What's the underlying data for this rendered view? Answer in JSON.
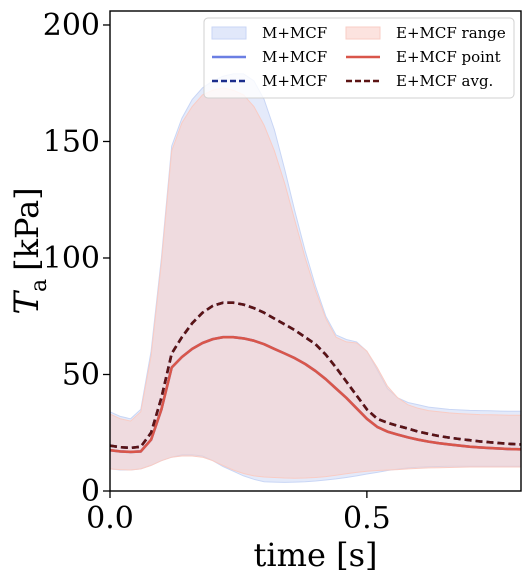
{
  "chart_data": {
    "type": "line",
    "xlabel": "time [s]",
    "ylabel_main": "T",
    "ylabel_sub": "a",
    "ylabel_unit": "[kPa]",
    "xlim": [
      0.0,
      0.8
    ],
    "ylim": [
      0,
      206
    ],
    "xticks": [
      0.0,
      0.5
    ],
    "xtick_labels": [
      "0.0",
      "0.5"
    ],
    "yticks": [
      0,
      50,
      100,
      150,
      200
    ],
    "ytick_labels": [
      "0",
      "50",
      "100",
      "150",
      "200"
    ],
    "grid": false,
    "legend_position": "top-right",
    "legend_columns": 2,
    "x": [
      0.0,
      0.02,
      0.04,
      0.06,
      0.08,
      0.1,
      0.12,
      0.14,
      0.16,
      0.18,
      0.2,
      0.22,
      0.24,
      0.26,
      0.28,
      0.3,
      0.32,
      0.34,
      0.36,
      0.38,
      0.4,
      0.42,
      0.44,
      0.46,
      0.48,
      0.5,
      0.52,
      0.54,
      0.56,
      0.58,
      0.6,
      0.62,
      0.64,
      0.66,
      0.68,
      0.7,
      0.72,
      0.74,
      0.76,
      0.78,
      0.8
    ],
    "series": [
      {
        "name": "M+MCF",
        "kind": "band",
        "color": "#c9d6f5",
        "lower": [
          9.5,
          9.0,
          9.0,
          9.5,
          11.0,
          13.0,
          14.5,
          15.5,
          15.5,
          15.0,
          13.0,
          10.5,
          8.5,
          6.5,
          5.0,
          4.0,
          3.8,
          3.7,
          3.8,
          4.0,
          4.3,
          4.7,
          5.2,
          5.8,
          6.5,
          7.3,
          8.0,
          8.8,
          9.4,
          9.9,
          10.2,
          10.4,
          10.5,
          10.6,
          10.6,
          10.6,
          10.6,
          10.6,
          10.6,
          10.6,
          10.6
        ],
        "upper": [
          34.0,
          32.0,
          31.0,
          35.0,
          60.0,
          100.0,
          148.0,
          160.0,
          168.0,
          173.0,
          176.0,
          178.0,
          179.0,
          179.0,
          176.0,
          168.0,
          155.0,
          138.0,
          120.0,
          103.0,
          88.0,
          75.0,
          67.0,
          65.0,
          64.0,
          60.0,
          52.0,
          44.0,
          40.0,
          38.0,
          37.0,
          36.0,
          35.5,
          35.0,
          34.8,
          34.6,
          34.5,
          34.4,
          34.3,
          34.2,
          34.2
        ]
      },
      {
        "name": "M+MCF",
        "kind": "line",
        "style": "solid",
        "color": "#6b7fe3",
        "values": [
          17.5,
          17.0,
          16.8,
          17.0,
          22.0,
          35.0,
          53.0,
          57.5,
          61.0,
          63.5,
          65.2,
          66.0,
          66.0,
          65.5,
          64.5,
          63.0,
          61.0,
          59.0,
          57.0,
          54.5,
          51.5,
          48.0,
          44.0,
          40.0,
          35.5,
          31.0,
          27.5,
          25.5,
          24.2,
          23.0,
          22.0,
          21.2,
          20.5,
          20.0,
          19.5,
          19.0,
          18.7,
          18.4,
          18.2,
          18.0,
          17.9
        ]
      },
      {
        "name": "M+MCF",
        "kind": "line",
        "style": "dashed",
        "color": "#1a2d8c",
        "values": [
          19.5,
          18.8,
          18.5,
          19.0,
          25.0,
          40.0,
          59.0,
          66.0,
          72.0,
          76.5,
          79.5,
          80.8,
          80.8,
          80.0,
          78.5,
          76.5,
          74.0,
          71.5,
          69.0,
          66.0,
          63.0,
          58.5,
          53.0,
          47.0,
          41.0,
          35.0,
          31.0,
          29.3,
          28.0,
          26.8,
          25.5,
          24.5,
          23.6,
          22.9,
          22.3,
          21.8,
          21.3,
          20.9,
          20.5,
          20.2,
          20.0
        ]
      },
      {
        "name": "E+MCF range",
        "kind": "band",
        "color": "#f9ccc4",
        "lower": [
          9.5,
          9.2,
          9.0,
          9.5,
          11.0,
          13.0,
          14.5,
          15.0,
          15.0,
          14.5,
          13.0,
          11.0,
          9.0,
          7.5,
          6.5,
          6.0,
          5.8,
          5.6,
          5.5,
          5.6,
          5.8,
          6.2,
          6.8,
          7.4,
          8.0,
          8.5,
          8.8,
          9.0,
          9.2,
          9.5,
          9.7,
          9.9,
          10.0,
          10.1,
          10.2,
          10.3,
          10.3,
          10.3,
          10.3,
          10.3,
          10.3
        ],
        "upper": [
          33.0,
          31.0,
          30.0,
          34.0,
          58.0,
          98.0,
          146.0,
          158.0,
          165.0,
          170.0,
          172.0,
          173.0,
          172.0,
          170.0,
          165.0,
          157.0,
          146.0,
          132.0,
          116.0,
          100.0,
          86.0,
          74.0,
          66.0,
          64.0,
          63.5,
          60.0,
          53.0,
          45.0,
          40.0,
          37.0,
          35.5,
          34.5,
          34.0,
          33.5,
          33.2,
          33.0,
          32.8,
          32.7,
          32.6,
          32.5,
          32.5
        ]
      },
      {
        "name": "E+MCF point",
        "kind": "line",
        "style": "solid",
        "color": "#d9564a",
        "values": [
          17.5,
          17.0,
          16.8,
          17.0,
          22.0,
          35.0,
          53.0,
          57.5,
          61.0,
          63.5,
          65.2,
          66.0,
          66.0,
          65.5,
          64.5,
          63.0,
          61.0,
          59.0,
          57.0,
          54.5,
          51.5,
          48.0,
          44.0,
          40.0,
          35.5,
          31.0,
          27.5,
          25.5,
          24.2,
          23.0,
          22.0,
          21.2,
          20.5,
          20.0,
          19.5,
          19.0,
          18.7,
          18.4,
          18.2,
          18.0,
          17.9
        ]
      },
      {
        "name": "E+MCF avg.",
        "kind": "line",
        "style": "dashed",
        "color": "#5c1414",
        "values": [
          19.5,
          18.8,
          18.5,
          19.0,
          25.0,
          40.0,
          59.0,
          66.0,
          72.0,
          76.5,
          79.5,
          80.8,
          80.8,
          80.0,
          78.5,
          76.5,
          74.0,
          71.5,
          69.0,
          66.0,
          63.0,
          58.5,
          53.0,
          47.0,
          41.0,
          35.0,
          31.0,
          29.3,
          28.0,
          26.8,
          25.5,
          24.5,
          23.6,
          22.9,
          22.3,
          21.8,
          21.3,
          20.9,
          20.5,
          20.2,
          20.0
        ]
      }
    ]
  }
}
